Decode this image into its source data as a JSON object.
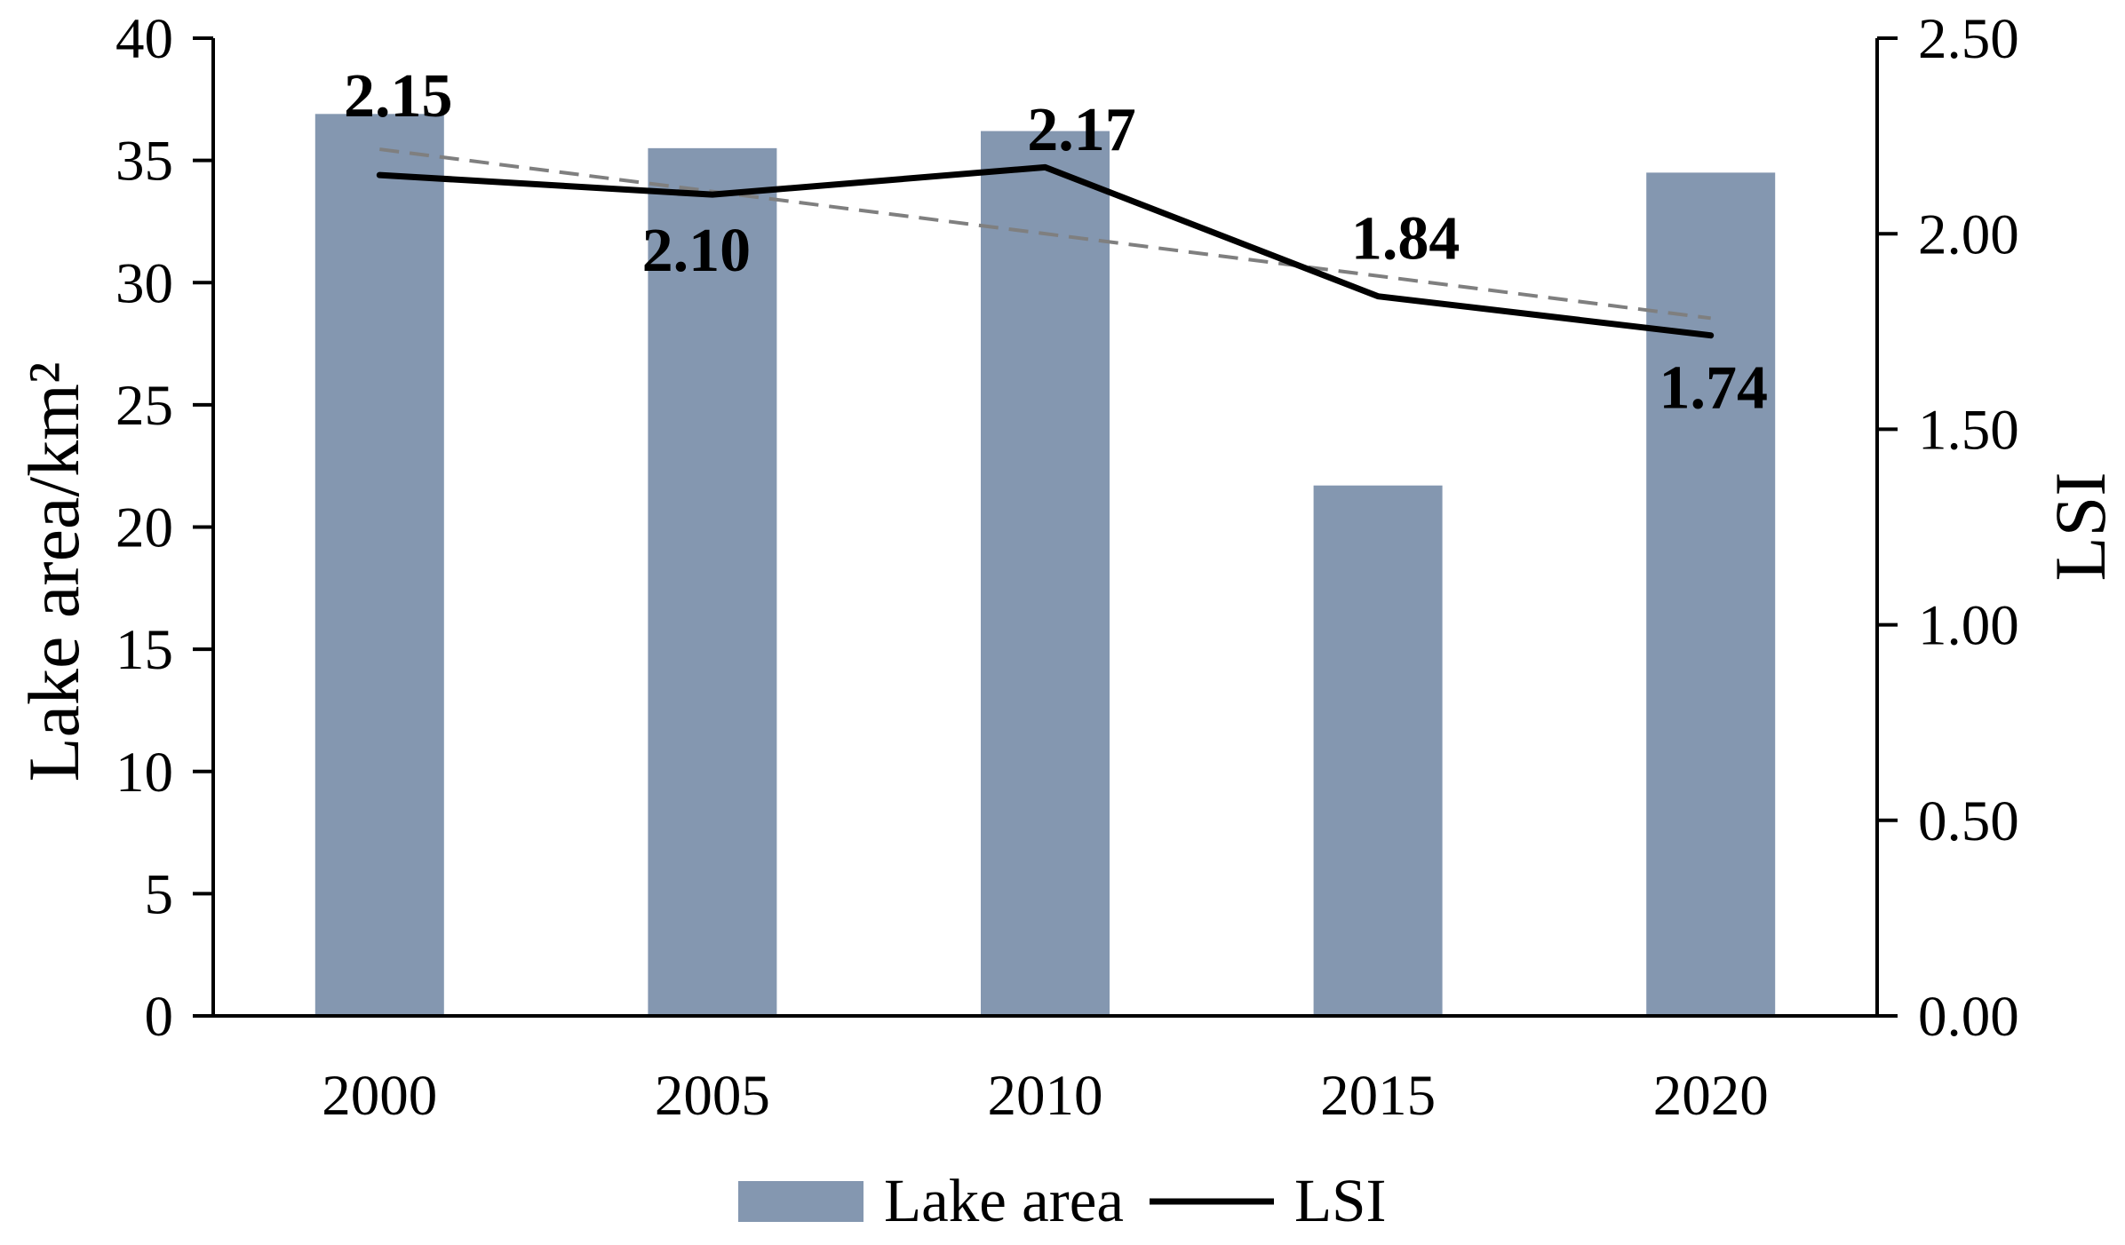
{
  "chart_data": {
    "type": "bar",
    "categories": [
      "2000",
      "2005",
      "2010",
      "2015",
      "2020"
    ],
    "series": [
      {
        "name": "Lake area",
        "type": "bar",
        "axis": "left",
        "values": [
          36.9,
          35.5,
          36.2,
          21.7,
          34.5
        ],
        "color": "#8497B0"
      },
      {
        "name": "LSI",
        "type": "line",
        "axis": "right",
        "values": [
          2.15,
          2.1,
          2.17,
          1.84,
          1.74
        ],
        "data_labels": [
          "2.15",
          "2.10",
          "2.17",
          "1.84",
          "1.74"
        ],
        "color": "#000000"
      }
    ],
    "trendline": {
      "series_index": 1,
      "fit": "linear",
      "dashed": true,
      "color": "#7F7F7F"
    },
    "ylabel": "Lake area/km²",
    "y2label": "LSI",
    "ylim": [
      0,
      40
    ],
    "yticks": [
      "0",
      "5",
      "10",
      "15",
      "20",
      "25",
      "30",
      "35",
      "40"
    ],
    "y2lim": [
      0,
      2.5
    ],
    "y2ticks": [
      "0.00",
      "0.50",
      "1.00",
      "1.50",
      "2.00",
      "2.50"
    ],
    "grid": false,
    "legend": {
      "placement": "bottom"
    }
  }
}
